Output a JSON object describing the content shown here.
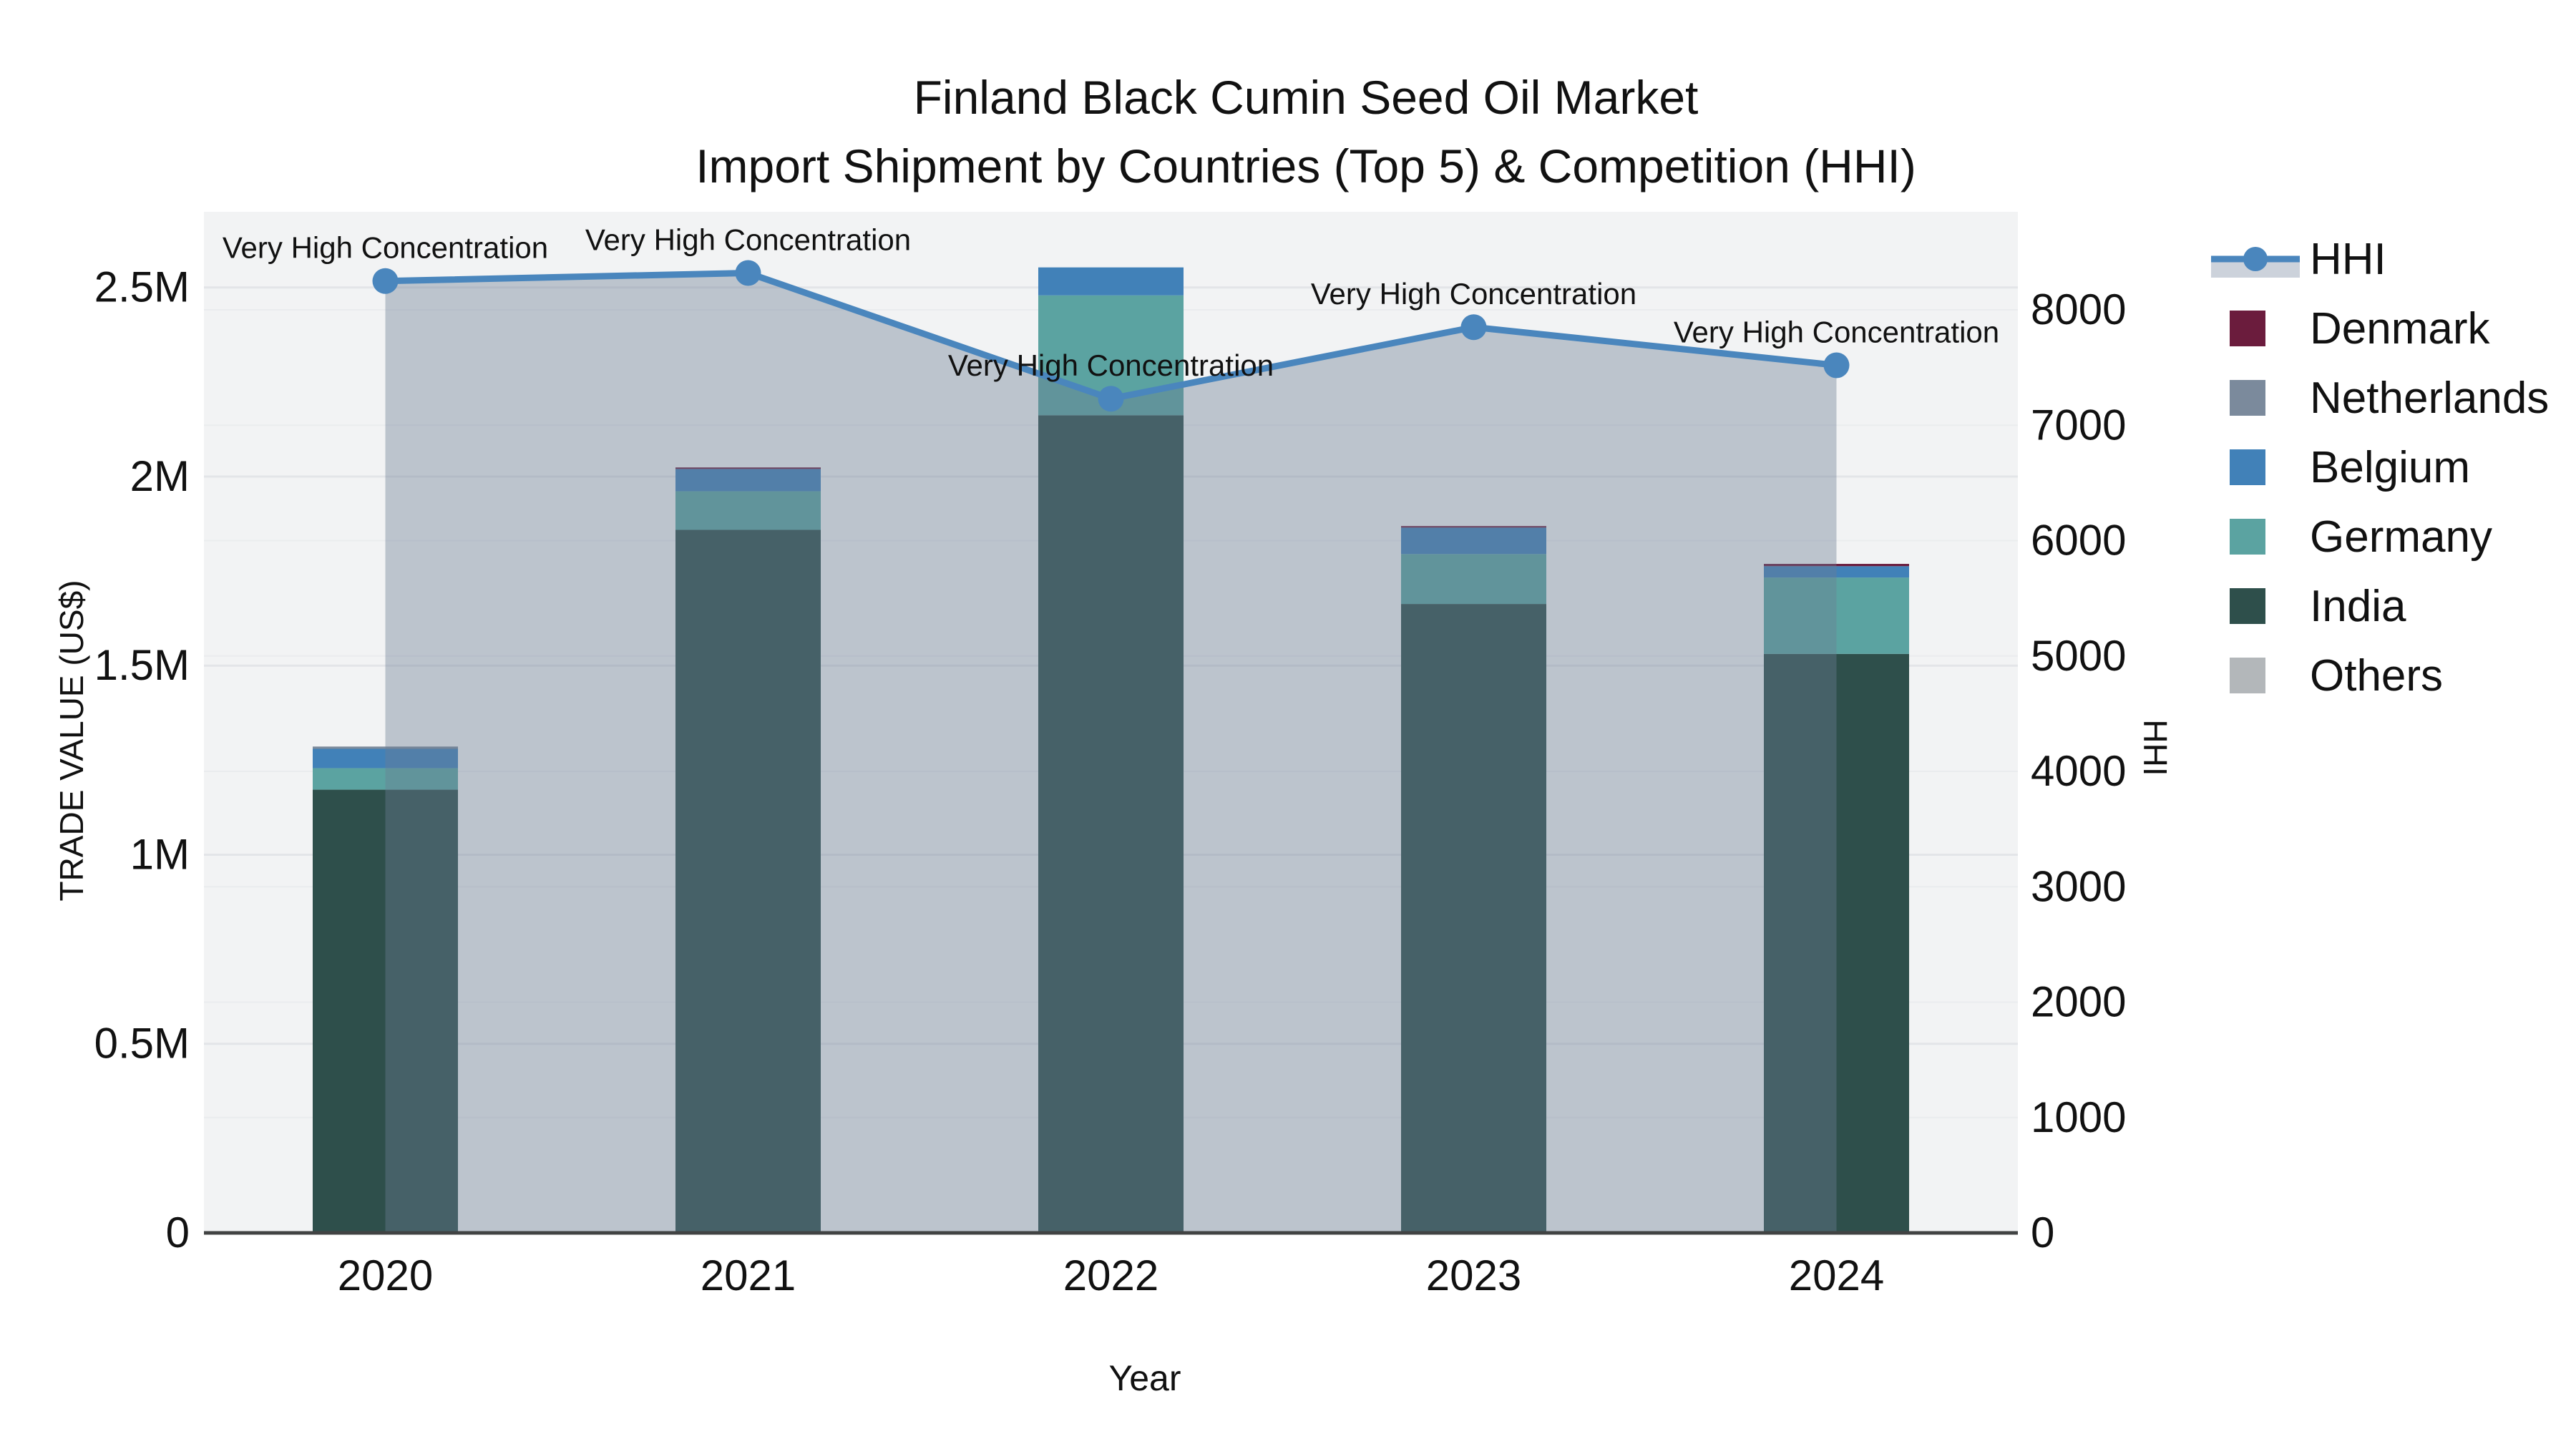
{
  "title": {
    "line1": "Finland Black Cumin Seed Oil Market",
    "line2": "Import Shipment by Countries (Top 5) & Competition (HHI)"
  },
  "chart_data": {
    "type": "bar",
    "subtype": "stacked-bar-with-line",
    "categories": [
      "2020",
      "2021",
      "2022",
      "2023",
      "2024"
    ],
    "bar_series": [
      {
        "name": "India",
        "color": "#2e4f4b",
        "values": [
          1172000,
          1859000,
          2162000,
          1663000,
          1531000
        ]
      },
      {
        "name": "Germany",
        "color": "#5ba3a1",
        "values": [
          57000,
          102000,
          317000,
          132000,
          202000
        ]
      },
      {
        "name": "Belgium",
        "color": "#4181b8",
        "values": [
          51000,
          59000,
          74000,
          70000,
          30000
        ]
      },
      {
        "name": "Netherlands",
        "color": "#7b8a9c",
        "values": [
          6000,
          0,
          0,
          0,
          0
        ]
      },
      {
        "name": "Denmark",
        "color": "#6b1c3d",
        "values": [
          0,
          4000,
          0,
          4000,
          6000
        ]
      },
      {
        "name": "Others",
        "color": "#b3b7ba",
        "values": [
          0,
          0,
          0,
          0,
          0
        ]
      }
    ],
    "line_series": {
      "name": "HHI",
      "color": "#4a86bd",
      "area_fill": "rgba(108,125,148,0.40)",
      "values": [
        8250,
        8320,
        7230,
        7850,
        7520
      ]
    },
    "point_annotations": [
      "Very High Concentration",
      "Very High Concentration",
      "Very High Concentration",
      "Very High Concentration",
      "Very High Concentration"
    ],
    "xlabel": "Year",
    "ylabel": "TRADE VALUE (US$)",
    "y2label": "HHI",
    "ylim": [
      0,
      2700000
    ],
    "y2lim": [
      0,
      8850
    ],
    "yticks": [
      {
        "v": 0,
        "label": "0"
      },
      {
        "v": 500000,
        "label": "0.5M"
      },
      {
        "v": 1000000,
        "label": "1M"
      },
      {
        "v": 1500000,
        "label": "1.5M"
      },
      {
        "v": 2000000,
        "label": "2M"
      },
      {
        "v": 2500000,
        "label": "2.5M"
      }
    ],
    "y2ticks": [
      {
        "v": 0,
        "label": "0"
      },
      {
        "v": 1000,
        "label": "1000"
      },
      {
        "v": 2000,
        "label": "2000"
      },
      {
        "v": 3000,
        "label": "3000"
      },
      {
        "v": 4000,
        "label": "4000"
      },
      {
        "v": 5000,
        "label": "5000"
      },
      {
        "v": 6000,
        "label": "6000"
      },
      {
        "v": 7000,
        "label": "7000"
      },
      {
        "v": 8000,
        "label": "8000"
      }
    ],
    "legend": {
      "position": "right",
      "items": [
        {
          "label": "HHI",
          "type": "line",
          "color": "#4a86bd",
          "band": "#ccd2db"
        },
        {
          "label": "Denmark",
          "type": "swatch",
          "color": "#6b1c3d"
        },
        {
          "label": "Netherlands",
          "type": "swatch",
          "color": "#7b8a9c"
        },
        {
          "label": "Belgium",
          "type": "swatch",
          "color": "#4181b8"
        },
        {
          "label": "Germany",
          "type": "swatch",
          "color": "#5ba3a1"
        },
        {
          "label": "India",
          "type": "swatch",
          "color": "#2e4f4b"
        },
        {
          "label": "Others",
          "type": "swatch",
          "color": "#b3b7ba"
        }
      ]
    },
    "grid": true,
    "plot_bg": "#f2f3f4",
    "grid_color": "#e3e5e8",
    "grid2_color": "#eaecee",
    "axisline_color": "#414343"
  }
}
